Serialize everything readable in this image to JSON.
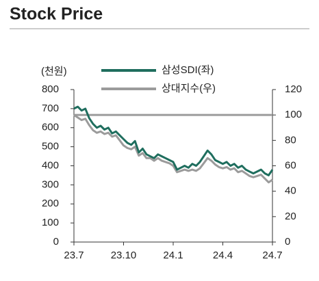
{
  "chart_data": {
    "type": "line",
    "title": "Stock Price",
    "y_label": "(천원)",
    "categories": [
      "23.7",
      null,
      null,
      null,
      null,
      null,
      null,
      null,
      null,
      null,
      null,
      null,
      null,
      "23.10",
      null,
      null,
      null,
      null,
      null,
      null,
      null,
      null,
      null,
      null,
      null,
      null,
      "24.1",
      null,
      null,
      null,
      null,
      null,
      null,
      null,
      null,
      null,
      null,
      null,
      null,
      "24.4",
      null,
      null,
      null,
      null,
      null,
      null,
      null,
      null,
      null,
      null,
      null,
      null,
      "24.7"
    ],
    "series": [
      {
        "name": "삼성SDI(좌)",
        "color": "#1f6e5e",
        "values": [
          700,
          710,
          690,
          700,
          650,
          620,
          600,
          610,
          590,
          600,
          570,
          580,
          560,
          540,
          520,
          510,
          530,
          470,
          490,
          460,
          450,
          440,
          460,
          450,
          440,
          430,
          420,
          380,
          390,
          400,
          390,
          410,
          400,
          420,
          450,
          480,
          460,
          430,
          420,
          410,
          420,
          400,
          410,
          390,
          400,
          380,
          370,
          360,
          370,
          380,
          360,
          350,
          380
        ]
      },
      {
        "name": "상대지수(우)",
        "color": "#9b9b9b",
        "axis": "y2",
        "values": [
          100,
          98,
          96,
          97,
          92,
          88,
          86,
          87,
          85,
          86,
          83,
          84,
          80,
          76,
          74,
          73,
          75,
          68,
          70,
          66,
          66,
          64,
          66,
          64,
          63,
          62,
          60,
          55,
          56,
          57,
          56,
          57,
          56,
          58,
          62,
          66,
          64,
          61,
          59,
          58,
          59,
          57,
          58,
          55,
          56,
          54,
          52,
          51,
          52,
          53,
          50,
          47,
          49
        ]
      }
    ],
    "y2_reference": 100,
    "ylim": [
      0,
      800
    ],
    "yticks": [
      0,
      100,
      200,
      300,
      400,
      500,
      600,
      700,
      800
    ],
    "y2lim": [
      0,
      120
    ],
    "y2ticks": [
      0,
      20,
      40,
      60,
      80,
      100,
      120
    ]
  }
}
